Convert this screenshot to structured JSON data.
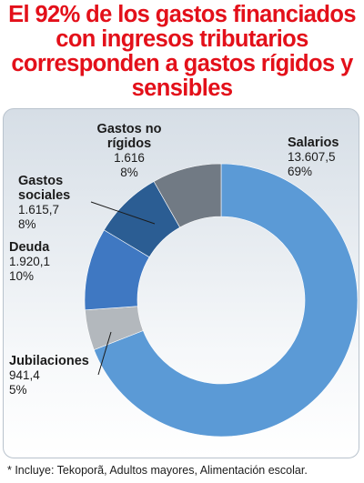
{
  "chart_data": {
    "type": "pie",
    "title": "El 92% de los gastos financiados con ingresos tributarios corresponden a gastos rígidos y sensibles",
    "title_lines": [
      "El 92% de los gastos financiados",
      "con ingresos tributarios",
      "corresponden a gastos rígidos y",
      "sensibles"
    ],
    "slices": [
      {
        "label_lines": [
          "Salarios"
        ],
        "value": 13607.5,
        "value_label": "13.607,5",
        "percent_label": "69%",
        "color": "#5b9ad6"
      },
      {
        "label_lines": [
          "Jubilaciones"
        ],
        "value": 941.4,
        "value_label": "941,4",
        "percent_label": "5%",
        "color": "#b3b8bd"
      },
      {
        "label_lines": [
          "Deuda"
        ],
        "value": 1920.1,
        "value_label": "1.920,1",
        "percent_label": "10%",
        "color": "#3f78c2"
      },
      {
        "label_lines": [
          "Gastos",
          "sociales"
        ],
        "value": 1615.7,
        "value_label": "1.615,7",
        "percent_label": "8%",
        "color": "#2b5d93"
      },
      {
        "label_lines": [
          "Gastos no",
          "rígidos"
        ],
        "value": 1616,
        "value_label": "1.616",
        "percent_label": "8%",
        "color": "#717a84"
      }
    ],
    "legend": "none",
    "donut": true
  },
  "footnote": "* Incluye: Tekoporã, Adultos mayores, Alimentación escolar."
}
